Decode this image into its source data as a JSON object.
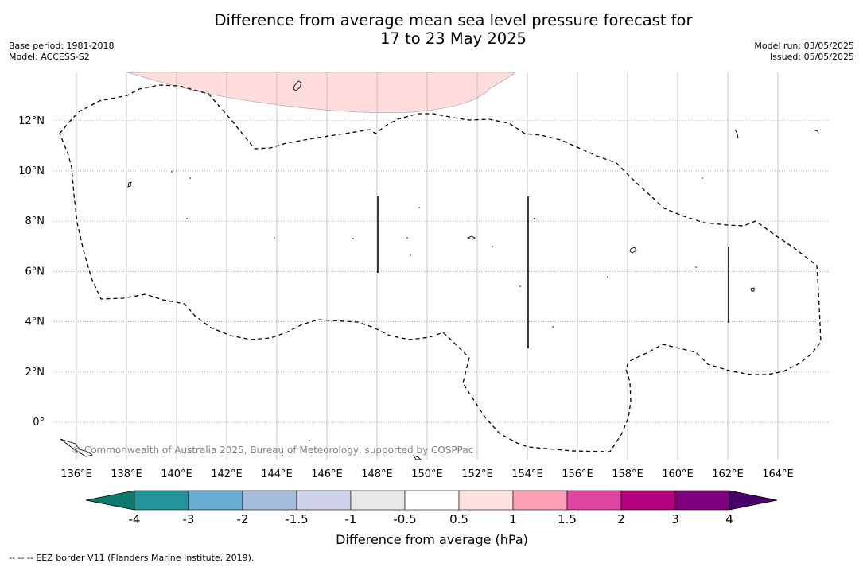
{
  "title": {
    "line1": "Difference from average mean sea level pressure forecast for",
    "line2": "17 to 23 May 2025"
  },
  "meta_left": {
    "base_period": "Base period: 1981-2018",
    "model": "Model: ACCESS-S2"
  },
  "meta_right": {
    "model_run": "Model run: 03/05/2025",
    "issued": "Issued: 05/05/2025"
  },
  "map": {
    "lon_range": [
      135.2,
      165.8
    ],
    "lat_range": [
      -1.5,
      14
    ],
    "lon_ticks": [
      "136°E",
      "138°E",
      "140°E",
      "142°E",
      "144°E",
      "146°E",
      "148°E",
      "150°E",
      "152°E",
      "154°E",
      "156°E",
      "158°E",
      "160°E",
      "162°E",
      "164°E"
    ],
    "lat_ticks": [
      "12°N",
      "10°N",
      "8°N",
      "6°N",
      "4°N",
      "2°N",
      "0°"
    ],
    "grid": true,
    "shaded_region_color": "#ffdddd",
    "copyright": "© Commonwealth of Australia 2025, Bureau of Meteorology, supported by COSPPac"
  },
  "colorbar": {
    "colors": [
      "#0e7a6d",
      "#22949a",
      "#68abd3",
      "#a5bcde",
      "#cdd0e8",
      "#e8e8e8",
      "#ffffff",
      "#fde0e0",
      "#fba0b6",
      "#df44a3",
      "#b4007e",
      "#7f007e",
      "#4a006a"
    ],
    "tick_labels": [
      "-4",
      "-3",
      "-2",
      "-1.5",
      "-1",
      "-0.5",
      "0.5",
      "1",
      "1.5",
      "2",
      "3",
      "4"
    ],
    "label": "Difference from average (hPa)"
  },
  "footnote": "--  --  -- EEZ border V11 (Flanders Marine Institute, 2019)."
}
